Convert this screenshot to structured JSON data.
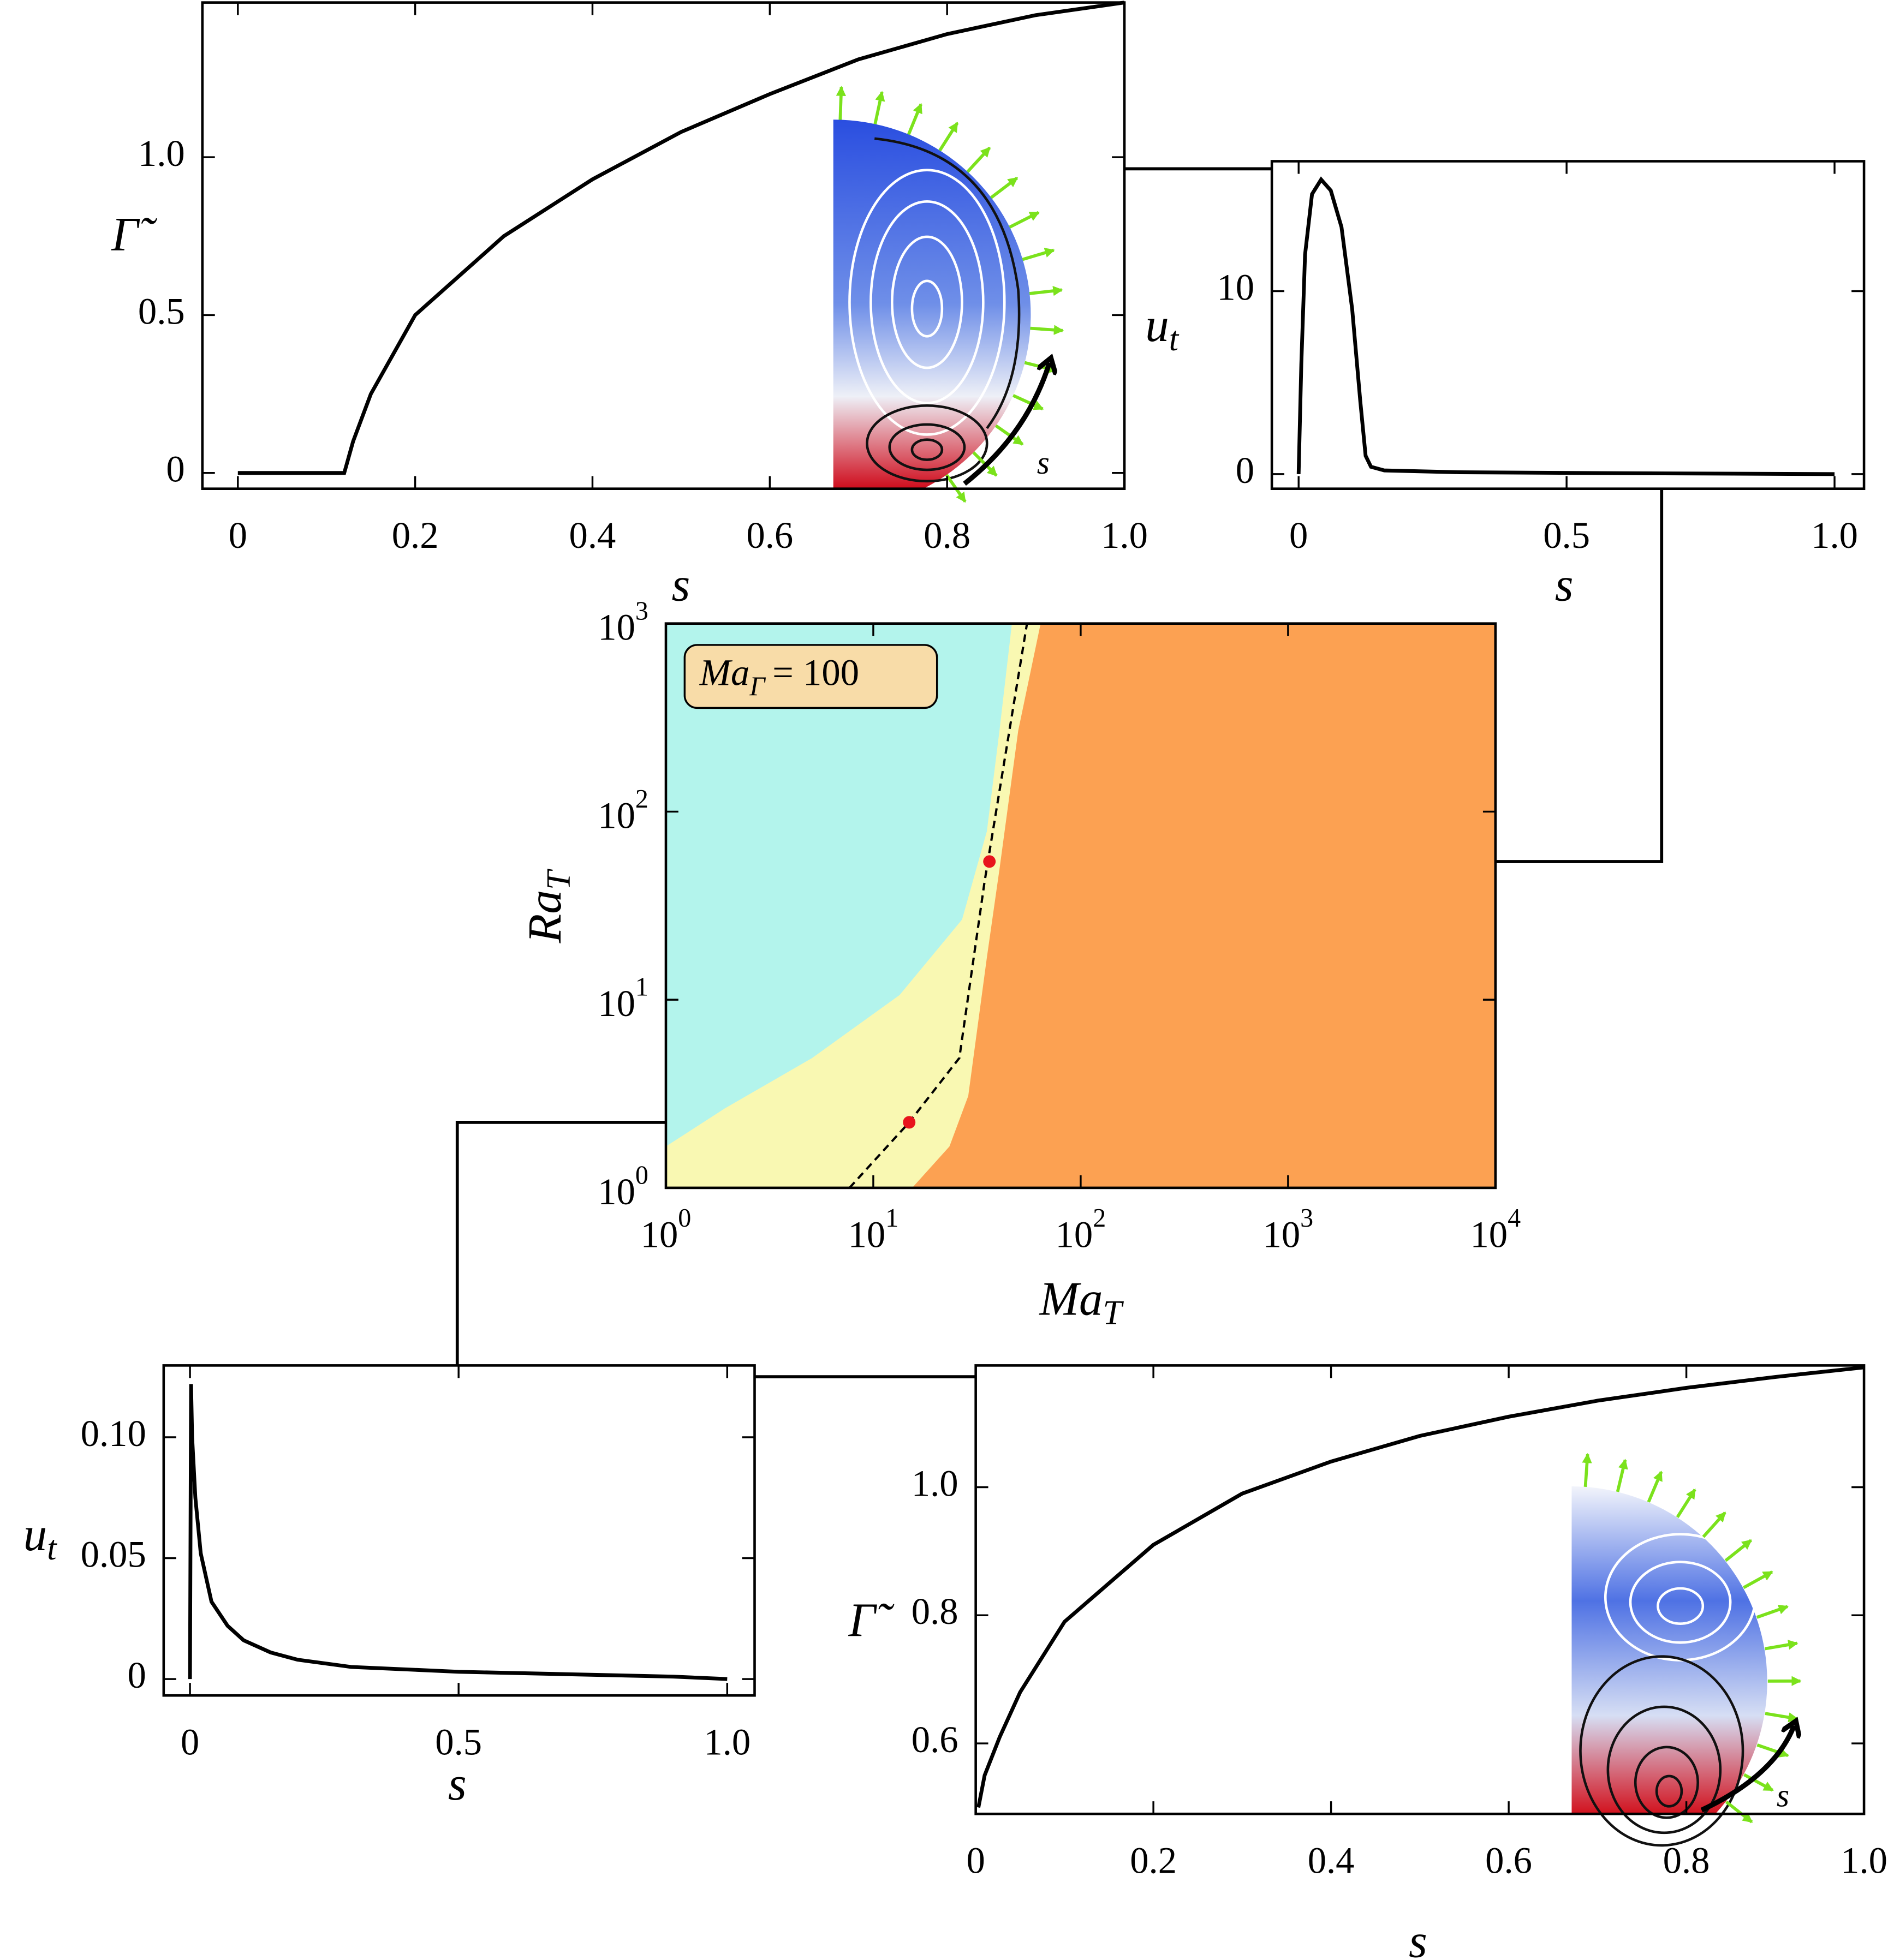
{
  "chart_data": [
    {
      "type": "line",
      "xlabel": "s",
      "ylabel": "Γ̃",
      "inset_label": "s",
      "color": "#000000",
      "x": [
        0,
        0.1,
        0.12,
        0.13,
        0.15,
        0.2,
        0.3,
        0.4,
        0.5,
        0.6,
        0.7,
        0.8,
        0.9,
        1.0
      ],
      "values": [
        0,
        0,
        0,
        0.1,
        0.25,
        0.5,
        0.75,
        0.93,
        1.08,
        1.2,
        1.31,
        1.39,
        1.45,
        1.49
      ],
      "xlim": [
        -0.04,
        1.0
      ],
      "ylim": [
        -0.05,
        1.49
      ],
      "xticks": [
        0,
        0.2,
        0.4,
        0.6,
        0.8,
        {
          "value": 1,
          "label": "1.0"
        }
      ],
      "yticks": [
        0,
        0.5,
        {
          "value": 1,
          "label": "1.0"
        }
      ]
    },
    {
      "type": "line",
      "xlabel": "s",
      "ylabel": {
        "base": "u",
        "sub": "t"
      },
      "color": "#000000",
      "x": [
        0,
        0.005,
        0.012,
        0.025,
        0.042,
        0.06,
        0.08,
        0.1,
        0.115,
        0.125,
        0.135,
        0.16,
        0.3,
        0.6,
        1.0
      ],
      "values": [
        0,
        6,
        12,
        15.3,
        16.1,
        15.5,
        13.5,
        9,
        4,
        1,
        0.4,
        0.2,
        0.1,
        0.05,
        0
      ],
      "xlim": [
        -0.05,
        1.055
      ],
      "ylim": [
        -0.8,
        17.1
      ],
      "xticks": [
        0,
        0.5,
        {
          "value": 1,
          "label": "1.0"
        }
      ],
      "yticks": [
        0,
        10
      ]
    },
    {
      "type": "region",
      "xlabel": {
        "base": "Ma",
        "sub": "T"
      },
      "ylabel": {
        "base": "Ra",
        "sub": "T"
      },
      "annotation": {
        "base": "Ma",
        "sub": "Γ",
        "rest": "= 100"
      },
      "annotation_color": "#f8dca8",
      "xscale": "log",
      "yscale": "log",
      "xlim": [
        1,
        10000
      ],
      "ylim": [
        1,
        1000
      ],
      "xticks": [
        {
          "value": 1,
          "label": {
            "base": "10",
            "sup": "0"
          }
        },
        {
          "value": 10,
          "label": {
            "base": "10",
            "sup": "1"
          }
        },
        {
          "value": 100,
          "label": {
            "base": "10",
            "sup": "2"
          }
        },
        {
          "value": 1000,
          "label": {
            "base": "10",
            "sup": "3"
          }
        },
        {
          "value": 10000,
          "label": {
            "base": "10",
            "sup": "4"
          }
        }
      ],
      "yticks": [
        {
          "value": 1,
          "label": {
            "base": "10",
            "sup": "0"
          }
        },
        {
          "value": 10,
          "label": {
            "base": "10",
            "sup": "1"
          }
        },
        {
          "value": 100,
          "label": {
            "base": "10",
            "sup": "2"
          }
        },
        {
          "value": 1000,
          "label": {
            "base": "10",
            "sup": "3"
          }
        }
      ],
      "background": "#f9f8b2",
      "regions": [
        {
          "color": "#b3f4ec",
          "close": "left",
          "x": [
            1,
            1.92,
            5.07,
            13.4,
            26.8,
            35.3,
            40.6,
            46.6
          ],
          "y": [
            1.66,
            2.64,
            4.9,
            10.6,
            26.7,
            78.7,
            270,
            1000
          ]
        },
        {
          "color": "#fca152",
          "close": "right",
          "x": [
            15.4,
            23.3,
            28.7,
            35.3,
            40.6,
            50.0,
            64.1
          ],
          "y": [
            1,
            1.66,
            3.08,
            16.8,
            49.5,
            270,
            1000
          ]
        }
      ],
      "lines": [
        {
          "color": "#000000",
          "dash": true,
          "x": [
            7.68,
            14.9,
            26.0,
            34.4,
            55.1
          ],
          "y": [
            1,
            2.23,
            4.9,
            42.4,
            1000
          ]
        }
      ],
      "points": {
        "color": "#e8141c",
        "x": [
          14.9,
          36.3
        ],
        "y": [
          2.23,
          54.3
        ]
      }
    },
    {
      "type": "line",
      "xlabel": "s",
      "ylabel": {
        "base": "u",
        "sub": "t"
      },
      "color": "#000000",
      "x": [
        0,
        0.002,
        0.004,
        0.01,
        0.02,
        0.04,
        0.07,
        0.1,
        0.15,
        0.2,
        0.3,
        0.5,
        0.7,
        0.9,
        1.0
      ],
      "values": [
        0,
        0.122,
        0.1,
        0.075,
        0.052,
        0.032,
        0.022,
        0.016,
        0.011,
        0.008,
        0.005,
        0.003,
        0.002,
        0.001,
        0
      ],
      "xlim": [
        -0.049,
        1.051
      ],
      "ylim": [
        -0.0068,
        0.1297
      ],
      "xticks": [
        0,
        0.5,
        {
          "value": 1,
          "label": "1.0"
        }
      ],
      "yticks": [
        0,
        0.05,
        {
          "value": 0.1,
          "label": "0.10"
        }
      ]
    },
    {
      "type": "line",
      "xlabel": "s",
      "ylabel": "Γ̃",
      "inset_label": "s",
      "color": "#000000",
      "x": [
        0.003,
        0.01,
        0.027,
        0.05,
        0.1,
        0.2,
        0.3,
        0.4,
        0.5,
        0.6,
        0.7,
        0.8,
        0.9,
        1.0
      ],
      "values": [
        0.5,
        0.55,
        0.61,
        0.68,
        0.79,
        0.91,
        0.99,
        1.04,
        1.08,
        1.11,
        1.135,
        1.155,
        1.172,
        1.187
      ],
      "xlim": [
        0,
        1
      ],
      "ylim": [
        0.49,
        1.19
      ],
      "xticks": [
        0,
        0.2,
        0.4,
        0.6,
        0.8,
        {
          "value": 1,
          "label": "1.0"
        }
      ],
      "yticks": [
        0.6,
        0.8,
        {
          "value": 1,
          "label": "1.0"
        }
      ]
    }
  ]
}
